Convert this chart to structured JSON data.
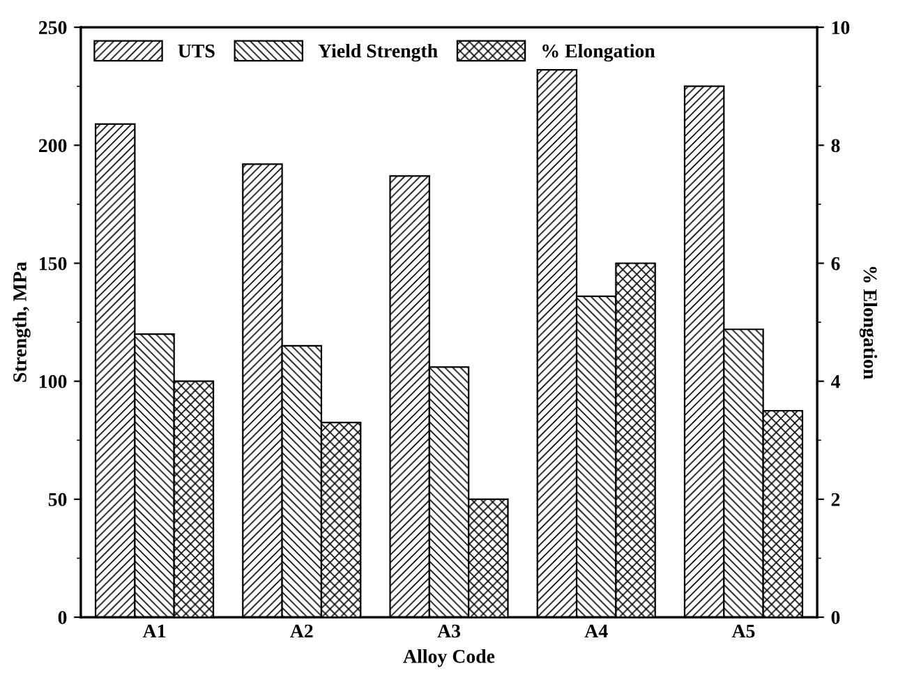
{
  "chart_data": {
    "type": "bar",
    "xlabel": "Alloy Code",
    "ylabel": "Strength, MPa",
    "y2label": "% Elongation",
    "categories": [
      "A1",
      "A2",
      "A3",
      "A4",
      "A5"
    ],
    "series": [
      {
        "name": "UTS",
        "color": "#000000",
        "values": [
          209,
          192,
          187,
          232,
          225
        ]
      },
      {
        "name": "Yield Strength",
        "color": "#000000",
        "values": [
          120,
          115,
          106,
          136,
          122
        ]
      },
      {
        "name": "% Elongation",
        "color": "#000000",
        "axis": "y2",
        "values": [
          4.0,
          3.3,
          2.0,
          6.0,
          3.5
        ]
      }
    ],
    "ylim": [
      0,
      250
    ],
    "yticks": [
      0,
      50,
      100,
      150,
      200,
      250
    ],
    "y2lim": [
      0,
      10
    ],
    "y2ticks": [
      0,
      2,
      4,
      6,
      8,
      10
    ],
    "grid": false,
    "legend": "top left"
  }
}
